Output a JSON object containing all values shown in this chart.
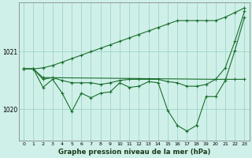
{
  "xlabel": "Graphe pression niveau de la mer (hPa)",
  "ylim": [
    1019.45,
    1021.85
  ],
  "yticks": [
    1020,
    1021
  ],
  "xlim": [
    -0.5,
    23.5
  ],
  "bg_color": "#cff0e8",
  "grid_color": "#9ed4c8",
  "line_color": "#1a6e2e",
  "line1": [
    1020.7,
    1020.7,
    1020.72,
    1020.76,
    1020.82,
    1020.88,
    1020.94,
    1021.0,
    1021.06,
    1021.12,
    1021.18,
    1021.24,
    1021.3,
    1021.36,
    1021.42,
    1021.48,
    1021.54,
    1021.54,
    1021.54,
    1021.54,
    1021.54,
    1021.6,
    1021.68,
    1021.76
  ],
  "line2": [
    1020.7,
    1020.7,
    1020.52,
    1020.55,
    1020.5,
    1020.46,
    1020.46,
    1020.46,
    1020.43,
    1020.46,
    1020.5,
    1020.52,
    1020.52,
    1020.52,
    1020.52,
    1020.48,
    1020.46,
    1020.4,
    1020.4,
    1020.43,
    1020.52,
    1020.52,
    1020.52,
    1020.52
  ],
  "line3": [
    1020.7,
    1020.7,
    1020.38,
    1020.52,
    1020.28,
    1019.96,
    1020.28,
    1020.2,
    1020.28,
    1020.3,
    1020.46,
    1020.38,
    1020.4,
    1020.48,
    1020.46,
    1019.98,
    1019.72,
    1019.62,
    1019.72,
    1020.22,
    1020.22,
    1020.5,
    1021.02,
    1021.6
  ],
  "line4_x": [
    0,
    1,
    2,
    20,
    21,
    22,
    23
  ],
  "line4_y": [
    1020.7,
    1020.7,
    1020.55,
    1020.52,
    1020.72,
    1021.18,
    1021.7
  ]
}
